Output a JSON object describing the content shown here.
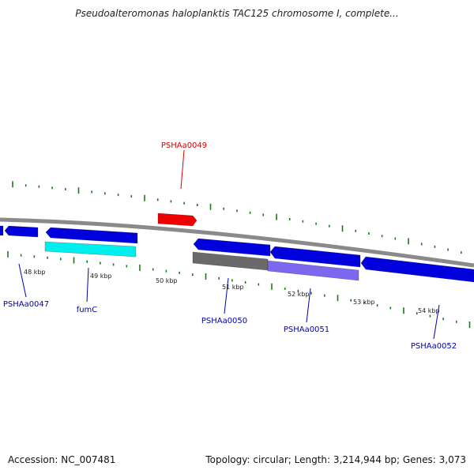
{
  "title": "Pseudoalteromonas haloplanktis TAC125 chromosome I, complete...",
  "footer": {
    "accession": "Accession: NC_007481",
    "stats": "Topology: circular; Length: 3,214,944 bp; Genes: 3,073"
  },
  "colors": {
    "backbone": "#8a8a8a",
    "tick": "#1a7a1a",
    "gene_blue": "#0000dd",
    "gene_red": "#ee0000",
    "gene_cyan": "#00eeee",
    "gene_gray": "#6a6a6a",
    "gene_purple": "#7b68ee",
    "label_blue": "#0000aa",
    "label_red": "#dd0000"
  },
  "ruler_labels": [
    "48 kbp",
    "49 kbp",
    "50 kbp",
    "51 kbp",
    "52 kbp",
    "53 kbp",
    "54 kbp"
  ],
  "gene_labels": [
    {
      "text": "PSHAa0049",
      "color": "red"
    },
    {
      "text": "PSHAa0047",
      "color": "blue"
    },
    {
      "text": "fumC",
      "color": "blue"
    },
    {
      "text": "PSHAa0050",
      "color": "blue"
    },
    {
      "text": "PSHAa0051",
      "color": "blue"
    },
    {
      "text": "PSHAa0052",
      "color": "blue"
    }
  ]
}
